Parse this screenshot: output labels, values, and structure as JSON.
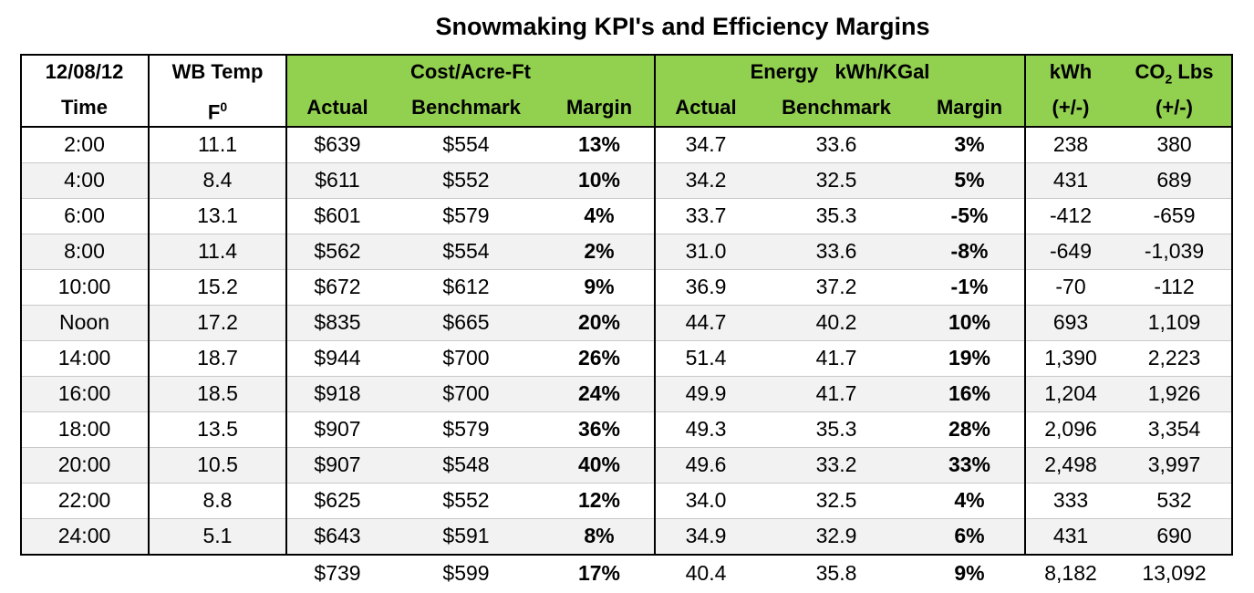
{
  "title": "Snowmaking KPI's and Efficiency Margins",
  "header": {
    "date": "12/08/12",
    "time": "Time",
    "wb_temp": "WB Temp",
    "wb_unit": "F",
    "wb_unit_sup": "0",
    "cost_group": "Cost/Acre-Ft",
    "energy_group_a": "Energy",
    "energy_group_b": "kWh/KGal",
    "actual": "Actual",
    "benchmark": "Benchmark",
    "margin": "Margin",
    "kwh": "kWh",
    "kwh_sub": "(+/-)",
    "co2_a": "CO",
    "co2_sub2": "2",
    "co2_b": " Lbs",
    "co2_sub": "(+/-)"
  },
  "rows": [
    {
      "time": "2:00",
      "wb": "11.1",
      "cost_actual": "$639",
      "cost_bench": "$554",
      "cost_margin": "13%",
      "en_actual": "34.7",
      "en_bench": "33.6",
      "en_margin": "3%",
      "kwh": "238",
      "co2": "380"
    },
    {
      "time": "4:00",
      "wb": "8.4",
      "cost_actual": "$611",
      "cost_bench": "$552",
      "cost_margin": "10%",
      "en_actual": "34.2",
      "en_bench": "32.5",
      "en_margin": "5%",
      "kwh": "431",
      "co2": "689"
    },
    {
      "time": "6:00",
      "wb": "13.1",
      "cost_actual": "$601",
      "cost_bench": "$579",
      "cost_margin": "4%",
      "en_actual": "33.7",
      "en_bench": "35.3",
      "en_margin": "-5%",
      "kwh": "-412",
      "co2": "-659"
    },
    {
      "time": "8:00",
      "wb": "11.4",
      "cost_actual": "$562",
      "cost_bench": "$554",
      "cost_margin": "2%",
      "en_actual": "31.0",
      "en_bench": "33.6",
      "en_margin": "-8%",
      "kwh": "-649",
      "co2": "-1,039"
    },
    {
      "time": "10:00",
      "wb": "15.2",
      "cost_actual": "$672",
      "cost_bench": "$612",
      "cost_margin": "9%",
      "en_actual": "36.9",
      "en_bench": "37.2",
      "en_margin": "-1%",
      "kwh": "-70",
      "co2": "-112"
    },
    {
      "time": "Noon",
      "wb": "17.2",
      "cost_actual": "$835",
      "cost_bench": "$665",
      "cost_margin": "20%",
      "en_actual": "44.7",
      "en_bench": "40.2",
      "en_margin": "10%",
      "kwh": "693",
      "co2": "1,109"
    },
    {
      "time": "14:00",
      "wb": "18.7",
      "cost_actual": "$944",
      "cost_bench": "$700",
      "cost_margin": "26%",
      "en_actual": "51.4",
      "en_bench": "41.7",
      "en_margin": "19%",
      "kwh": "1,390",
      "co2": "2,223"
    },
    {
      "time": "16:00",
      "wb": "18.5",
      "cost_actual": "$918",
      "cost_bench": "$700",
      "cost_margin": "24%",
      "en_actual": "49.9",
      "en_bench": "41.7",
      "en_margin": "16%",
      "kwh": "1,204",
      "co2": "1,926"
    },
    {
      "time": "18:00",
      "wb": "13.5",
      "cost_actual": "$907",
      "cost_bench": "$579",
      "cost_margin": "36%",
      "en_actual": "49.3",
      "en_bench": "35.3",
      "en_margin": "28%",
      "kwh": "2,096",
      "co2": "3,354"
    },
    {
      "time": "20:00",
      "wb": "10.5",
      "cost_actual": "$907",
      "cost_bench": "$548",
      "cost_margin": "40%",
      "en_actual": "49.6",
      "en_bench": "33.2",
      "en_margin": "33%",
      "kwh": "2,498",
      "co2": "3,997"
    },
    {
      "time": "22:00",
      "wb": "8.8",
      "cost_actual": "$625",
      "cost_bench": "$552",
      "cost_margin": "12%",
      "en_actual": "34.0",
      "en_bench": "32.5",
      "en_margin": "4%",
      "kwh": "333",
      "co2": "532"
    },
    {
      "time": "24:00",
      "wb": "5.1",
      "cost_actual": "$643",
      "cost_bench": "$591",
      "cost_margin": "8%",
      "en_actual": "34.9",
      "en_bench": "32.9",
      "en_margin": "6%",
      "kwh": "431",
      "co2": "690"
    }
  ],
  "totals": {
    "cost_actual": "$739",
    "cost_bench": "$599",
    "cost_margin": "17%",
    "en_actual": "40.4",
    "en_bench": "35.8",
    "en_margin": "9%",
    "kwh": "8,182",
    "co2": "13,092"
  },
  "colors": {
    "header_green": "#92d050",
    "stripe": "#f2f2f2"
  }
}
